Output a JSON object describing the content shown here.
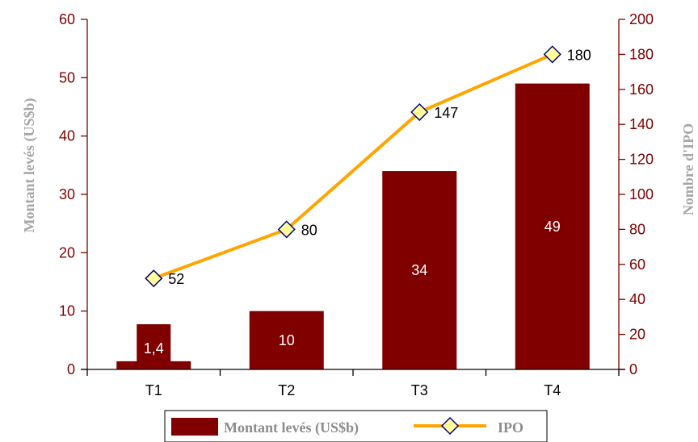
{
  "chart_data": {
    "type": "bar+line",
    "categories": [
      "T1",
      "T2",
      "T3",
      "T4"
    ],
    "series": [
      {
        "name": "Montant levés (US$b)",
        "type": "bar",
        "axis": "left",
        "values": [
          1.4,
          10,
          34,
          49
        ],
        "labels": [
          "1,4",
          "10",
          "34",
          "49"
        ],
        "color": "#800000"
      },
      {
        "name": "IPO",
        "type": "line",
        "axis": "right",
        "values": [
          52,
          80,
          147,
          180
        ],
        "labels": [
          "52",
          "80",
          "147",
          "180"
        ],
        "color": "#ffa500",
        "marker_fill": "#ffff99",
        "marker_stroke": "#000080"
      }
    ],
    "ylabel": "Montant levés (US$b)",
    "ylabel_right": "Nombre d'IPO",
    "ylim": [
      0,
      60
    ],
    "ylim_right": [
      0,
      200
    ],
    "yticks": [
      "0",
      "10",
      "20",
      "30",
      "40",
      "50",
      "60"
    ],
    "yticks_right": [
      "0",
      "20",
      "40",
      "60",
      "80",
      "100",
      "120",
      "140",
      "160",
      "180",
      "200"
    ],
    "legend": "bottom",
    "grid": false
  }
}
